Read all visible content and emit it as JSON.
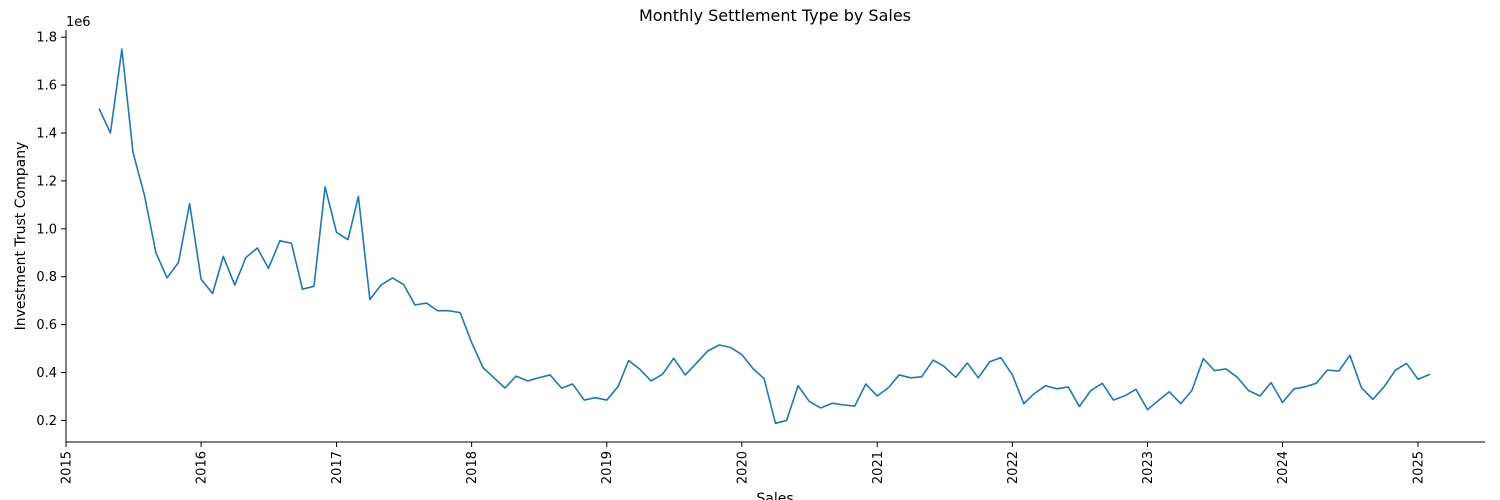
{
  "chart_data": {
    "type": "line",
    "title": "Monthly Settlement Type by Sales",
    "xlabel": "Sales",
    "ylabel": "Investment Trust Company",
    "y_offset_label": "1e6",
    "y_scale": 1000000,
    "xlim": [
      "2015-01-01",
      "2025-07-01"
    ],
    "ylim": [
      110000,
      1830000
    ],
    "x_ticks": [
      {
        "date": "2015-01-01",
        "label": "2015"
      },
      {
        "date": "2016-01-01",
        "label": "2016"
      },
      {
        "date": "2017-01-01",
        "label": "2017"
      },
      {
        "date": "2018-01-01",
        "label": "2018"
      },
      {
        "date": "2019-01-01",
        "label": "2019"
      },
      {
        "date": "2020-01-01",
        "label": "2020"
      },
      {
        "date": "2021-01-01",
        "label": "2021"
      },
      {
        "date": "2022-01-01",
        "label": "2022"
      },
      {
        "date": "2023-01-01",
        "label": "2023"
      },
      {
        "date": "2024-01-01",
        "label": "2024"
      },
      {
        "date": "2025-01-01",
        "label": "2025"
      }
    ],
    "y_ticks": [
      {
        "value": 200000,
        "label": "0.2"
      },
      {
        "value": 400000,
        "label": "0.4"
      },
      {
        "value": 600000,
        "label": "0.6"
      },
      {
        "value": 800000,
        "label": "0.8"
      },
      {
        "value": 1000000,
        "label": "1.0"
      },
      {
        "value": 1200000,
        "label": "1.2"
      },
      {
        "value": 1400000,
        "label": "1.4"
      },
      {
        "value": 1600000,
        "label": "1.6"
      },
      {
        "value": 1800000,
        "label": "1.8"
      }
    ],
    "grid": false,
    "series": [
      {
        "color": "#1f77b4",
        "x": [
          "2015-04",
          "2015-05",
          "2015-06",
          "2015-07",
          "2015-08",
          "2015-09",
          "2015-10",
          "2015-11",
          "2015-12",
          "2016-01",
          "2016-02",
          "2016-03",
          "2016-04",
          "2016-05",
          "2016-06",
          "2016-07",
          "2016-08",
          "2016-09",
          "2016-10",
          "2016-11",
          "2016-12",
          "2017-01",
          "2017-02",
          "2017-03",
          "2017-04",
          "2017-05",
          "2017-06",
          "2017-07",
          "2017-08",
          "2017-09",
          "2017-10",
          "2017-11",
          "2017-12",
          "2018-01",
          "2018-02",
          "2018-03",
          "2018-04",
          "2018-05",
          "2018-06",
          "2018-07",
          "2018-08",
          "2018-09",
          "2018-10",
          "2018-11",
          "2018-12",
          "2019-01",
          "2019-02",
          "2019-03",
          "2019-04",
          "2019-05",
          "2019-06",
          "2019-07",
          "2019-08",
          "2019-09",
          "2019-10",
          "2019-11",
          "2019-12",
          "2020-01",
          "2020-02",
          "2020-03",
          "2020-04",
          "2020-05",
          "2020-06",
          "2020-07",
          "2020-08",
          "2020-09",
          "2020-10",
          "2020-11",
          "2020-12",
          "2021-01",
          "2021-02",
          "2021-03",
          "2021-04",
          "2021-05",
          "2021-06",
          "2021-07",
          "2021-08",
          "2021-09",
          "2021-10",
          "2021-11",
          "2021-12",
          "2022-01",
          "2022-02",
          "2022-03",
          "2022-04",
          "2022-05",
          "2022-06",
          "2022-07",
          "2022-08",
          "2022-09",
          "2022-10",
          "2022-11",
          "2022-12",
          "2023-01",
          "2023-02",
          "2023-03",
          "2023-04",
          "2023-05",
          "2023-06",
          "2023-07",
          "2023-08",
          "2023-09",
          "2023-10",
          "2023-11",
          "2023-12",
          "2024-01",
          "2024-02",
          "2024-03",
          "2024-04",
          "2024-05",
          "2024-06",
          "2024-07",
          "2024-08",
          "2024-09",
          "2024-10",
          "2024-11",
          "2024-12",
          "2025-01",
          "2025-02"
        ],
        "y": [
          1500000,
          1400000,
          1750000,
          1320000,
          1140000,
          900000,
          795000,
          860000,
          1105000,
          790000,
          730000,
          885000,
          765000,
          880000,
          920000,
          835000,
          950000,
          940000,
          748000,
          760000,
          1175000,
          985000,
          955000,
          1135000,
          705000,
          765000,
          795000,
          768000,
          682000,
          690000,
          658000,
          658000,
          650000,
          525000,
          420000,
          380000,
          335000,
          385000,
          365000,
          378000,
          390000,
          335000,
          352000,
          285000,
          295000,
          285000,
          342000,
          450000,
          413000,
          365000,
          393000,
          460000,
          390000,
          440000,
          490000,
          515000,
          505000,
          475000,
          415000,
          375000,
          188000,
          200000,
          345000,
          280000,
          252000,
          272000,
          265000,
          260000,
          352000,
          302000,
          338000,
          390000,
          378000,
          382000,
          452000,
          425000,
          380000,
          440000,
          378000,
          445000,
          462000,
          390000,
          270000,
          312000,
          345000,
          332000,
          340000,
          258000,
          325000,
          355000,
          285000,
          303000,
          330000,
          245000,
          285000,
          320000,
          270000,
          325000,
          458000,
          408000,
          415000,
          380000,
          325000,
          302000,
          358000,
          275000,
          332000,
          340000,
          355000,
          410000,
          406000,
          472000,
          337000,
          288000,
          340000,
          410000,
          438000,
          372000,
          392000
        ]
      }
    ]
  }
}
